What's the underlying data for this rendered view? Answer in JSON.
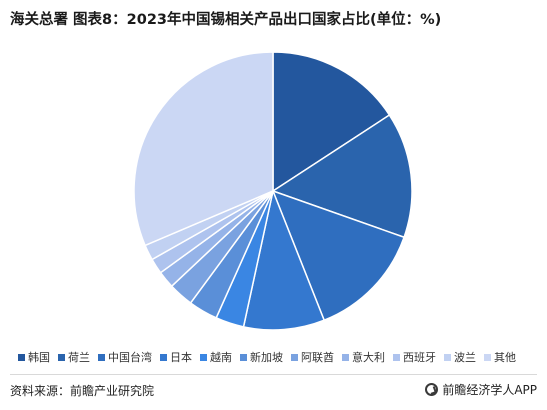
{
  "header": {
    "title": "海关总署 图表8：2023年中国锡相关产品出口国家占比(单位：%)"
  },
  "footer": {
    "source": "资料来源：前瞻产业研究院",
    "brand": "前瞻经济学人APP"
  },
  "chart_data": {
    "type": "pie",
    "title": "海关总署 图表8：2023年中国锡相关产品出口国家占比(单位：%)",
    "legend_position": "bottom",
    "start_angle": "12 o'clock",
    "direction": "clockwise",
    "slices": [
      {
        "label": "韩国",
        "value": 15.8,
        "color": "#23579e"
      },
      {
        "label": "荷兰",
        "value": 14.6,
        "color": "#2a64ad"
      },
      {
        "label": "中国台湾",
        "value": 13.6,
        "color": "#2f6ebf"
      },
      {
        "label": "日本",
        "value": 9.4,
        "color": "#3478cf"
      },
      {
        "label": "越南",
        "value": 3.3,
        "color": "#3a86e3"
      },
      {
        "label": "新加坡",
        "value": 3.4,
        "color": "#5a8fd8"
      },
      {
        "label": "阿联酋",
        "value": 2.9,
        "color": "#7aa2e0"
      },
      {
        "label": "意大利",
        "value": 2.0,
        "color": "#95b3e8"
      },
      {
        "label": "西班牙",
        "value": 1.8,
        "color": "#aec3ee"
      },
      {
        "label": "波兰",
        "value": 1.8,
        "color": "#c1d1f2"
      },
      {
        "label": "其他",
        "value": 31.4,
        "color": "#cbd7f4"
      }
    ]
  }
}
